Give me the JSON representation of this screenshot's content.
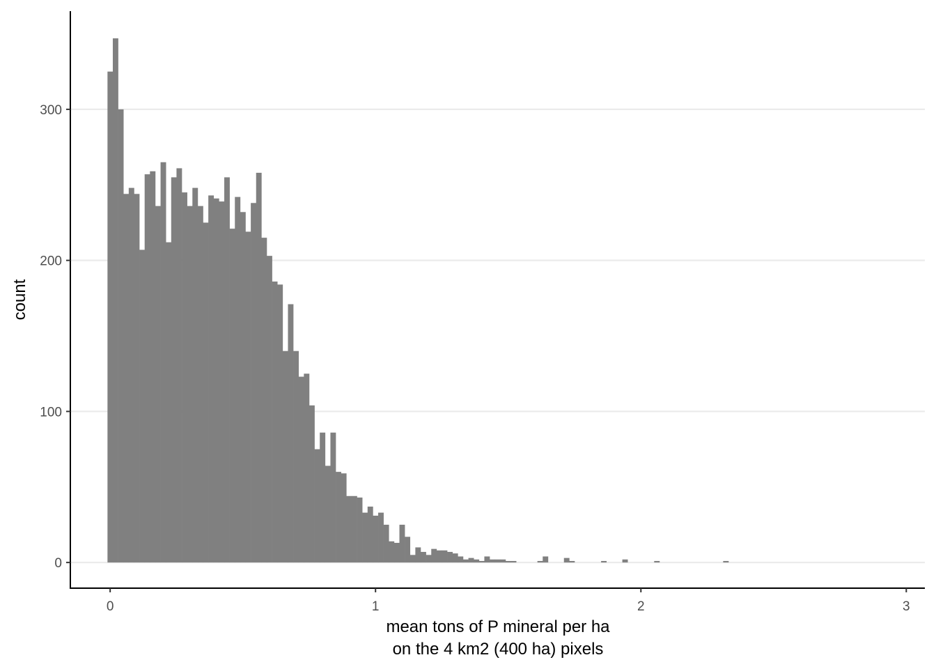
{
  "chart_data": {
    "type": "bar",
    "subtype": "histogram",
    "xlabel_line1": "mean tons of P mineral per ha",
    "xlabel_line2": "on the 4 km2 (400 ha) pixels",
    "ylabel": "count",
    "xlim": [
      -0.15,
      3.07
    ],
    "ylim": [
      -17,
      365
    ],
    "x_ticks": [
      0,
      1,
      2,
      3
    ],
    "y_ticks": [
      0,
      100,
      200,
      300
    ],
    "grid": "horizontal major",
    "bar_color": "#808080",
    "bin_width": 0.02,
    "first_bin_start": -0.01,
    "counts": [
      325,
      347,
      300,
      244,
      248,
      244,
      207,
      257,
      259,
      236,
      265,
      212,
      255,
      261,
      245,
      236,
      248,
      236,
      225,
      243,
      241,
      239,
      255,
      221,
      242,
      232,
      219,
      238,
      258,
      215,
      203,
      186,
      184,
      140,
      171,
      140,
      123,
      125,
      104,
      75,
      86,
      64,
      86,
      60,
      59,
      44,
      44,
      43,
      33,
      37,
      31,
      33,
      25,
      14,
      13,
      25,
      17,
      5,
      10,
      7,
      5,
      9,
      8,
      8,
      7,
      6,
      4,
      2,
      3,
      2,
      1,
      4,
      2,
      2,
      2,
      1,
      1,
      0,
      0,
      0,
      0,
      1,
      4,
      0,
      0,
      0,
      3,
      1,
      0,
      0,
      0,
      0,
      0,
      1,
      0,
      0,
      0,
      2,
      0,
      0,
      0,
      0,
      0,
      1,
      0,
      0,
      0,
      0,
      0,
      0,
      0,
      0,
      0,
      0,
      0,
      0,
      1
    ]
  },
  "colors": {
    "bar": "#808080",
    "grid": "#ebebeb",
    "axis": "#000000",
    "tick_text": "#4d4d4d"
  }
}
